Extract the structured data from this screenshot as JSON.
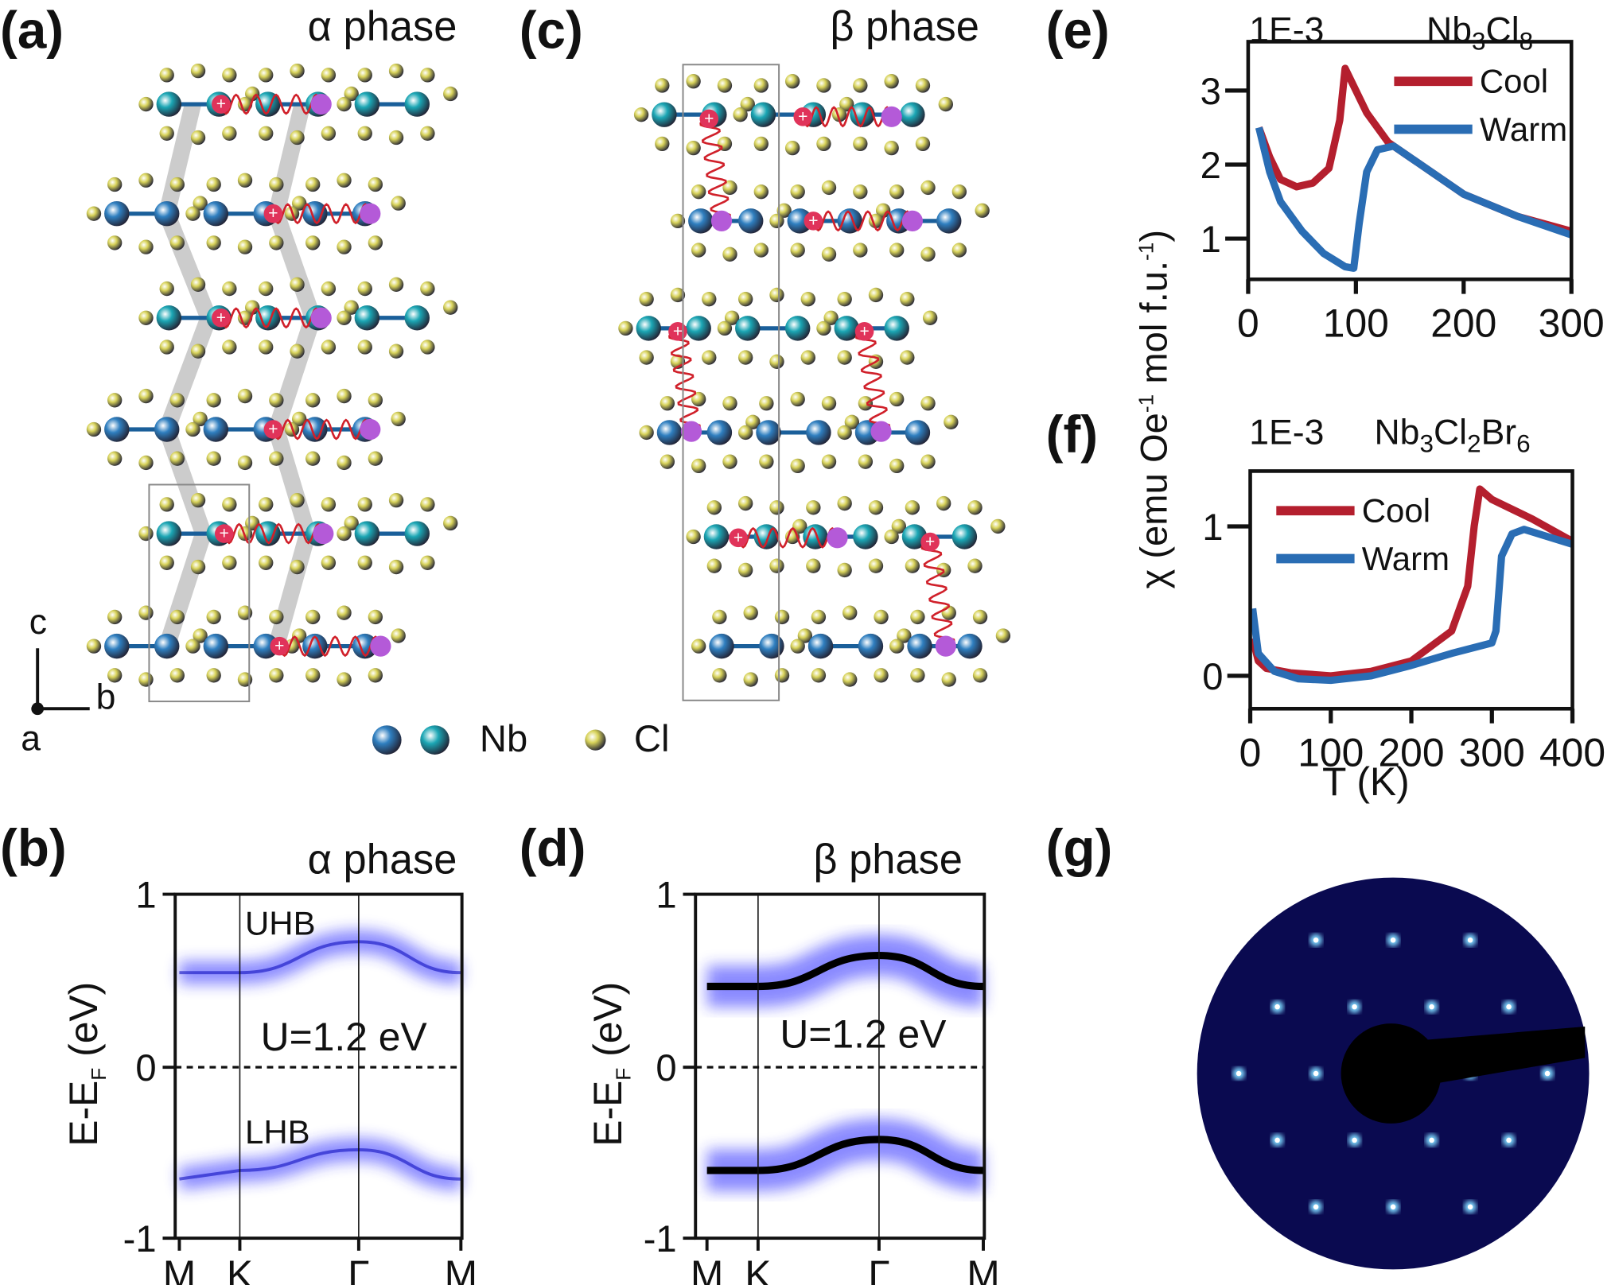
{
  "panels": {
    "a": {
      "label": "(a)",
      "title": "α phase"
    },
    "b": {
      "label": "(b)",
      "title": "α phase"
    },
    "c": {
      "label": "(c)",
      "title": "β phase"
    },
    "d": {
      "label": "(d)",
      "title": "β phase"
    },
    "e": {
      "label": "(e)"
    },
    "f": {
      "label": "(f)"
    },
    "g": {
      "label": "(g)"
    }
  },
  "structure": {
    "axes": {
      "c": "c",
      "b": "b",
      "a": "a"
    },
    "legend": {
      "nb": "Nb",
      "cl": "Cl"
    },
    "colors": {
      "nb_dark": "#2f7fc0",
      "nb_teal": "#1ba6b4",
      "cl": "#d8d35a",
      "plus": "#e0335a",
      "minus": "#b45ad8",
      "wave": "#d0202a"
    }
  },
  "bands": {
    "ylabel": "E-E",
    "ylabel_sub": "F",
    "ylabel_unit": "(eV)",
    "annotation": "U=1.2 eV",
    "yticks": [
      "1",
      "0",
      "-1"
    ],
    "kpoints": [
      "M",
      "K",
      "Γ",
      "M"
    ],
    "alpha": {
      "uhb_label": "UHB",
      "lhb_label": "LHB",
      "upper": [
        0.55,
        0.55,
        0.73,
        0.55
      ],
      "lower": [
        -0.65,
        -0.6,
        -0.48,
        -0.65
      ]
    },
    "beta": {
      "upper": [
        0.47,
        0.47,
        0.65,
        0.47
      ],
      "lower": [
        -0.6,
        -0.6,
        -0.42,
        -0.6
      ]
    },
    "band_color": "#2a2aff"
  },
  "chart_data": [
    {
      "type": "line",
      "panel": "e",
      "title_left": "1E-3",
      "compound": {
        "base": "Nb",
        "s1": "3",
        "mid": "Cl",
        "s2": "8"
      },
      "xlim": [
        0,
        300
      ],
      "ylim": [
        0.45,
        3.66
      ],
      "xticks": [
        "0",
        "100",
        "200",
        "300"
      ],
      "yticks": [
        "1",
        "2",
        "3"
      ],
      "legend_position": "top-right",
      "series": [
        {
          "name": "Cool",
          "color": "#b41f2e",
          "x": [
            10,
            20,
            30,
            45,
            60,
            75,
            85,
            90,
            100,
            110,
            130,
            150,
            200,
            250,
            300
          ],
          "y": [
            2.5,
            2.1,
            1.8,
            1.7,
            1.75,
            1.95,
            2.6,
            3.3,
            3.0,
            2.7,
            2.3,
            2.1,
            1.6,
            1.3,
            1.1
          ]
        },
        {
          "name": "Warm",
          "color": "#2a6db4",
          "x": [
            10,
            20,
            30,
            50,
            70,
            90,
            98,
            103,
            110,
            120,
            135,
            150,
            200,
            250,
            300
          ],
          "y": [
            2.5,
            1.9,
            1.5,
            1.1,
            0.8,
            0.62,
            0.6,
            1.2,
            1.9,
            2.2,
            2.25,
            2.1,
            1.6,
            1.3,
            1.05
          ]
        }
      ]
    },
    {
      "type": "line",
      "panel": "f",
      "title_left": "1E-3",
      "compound": {
        "base": "Nb",
        "s1": "3",
        "mid": "Cl",
        "s2": "2",
        "mid2": "Br",
        "s3": "6"
      },
      "xlim": [
        0,
        400
      ],
      "ylim": [
        -0.22,
        1.37
      ],
      "xticks": [
        "0",
        "100",
        "200",
        "300",
        "400"
      ],
      "yticks": [
        "0",
        "1"
      ],
      "xlabel": "T (K)",
      "legend_position": "top-left",
      "series": [
        {
          "name": "Cool",
          "color": "#b41f2e",
          "x": [
            3,
            10,
            20,
            50,
            100,
            150,
            200,
            250,
            270,
            278,
            285,
            300,
            350,
            400
          ],
          "y": [
            0.25,
            0.1,
            0.05,
            0.02,
            0,
            0.03,
            0.1,
            0.3,
            0.6,
            1.0,
            1.25,
            1.18,
            1.05,
            0.9
          ]
        },
        {
          "name": "Warm",
          "color": "#2a6db4",
          "x": [
            3,
            10,
            30,
            60,
            100,
            150,
            200,
            250,
            300,
            305,
            312,
            325,
            340,
            400
          ],
          "y": [
            0.45,
            0.15,
            0.03,
            -0.02,
            -0.03,
            0,
            0.07,
            0.15,
            0.22,
            0.3,
            0.8,
            0.95,
            0.98,
            0.88
          ]
        }
      ]
    }
  ],
  "susceptibility_ylabel": {
    "pre": "χ (emu Oe",
    "sup1": "-1",
    "mid": " mol f.u.",
    "sup2": "-1",
    "post": ")"
  },
  "leed": {
    "background": "#0a0a50",
    "spot_color": "#7fd8ff"
  }
}
